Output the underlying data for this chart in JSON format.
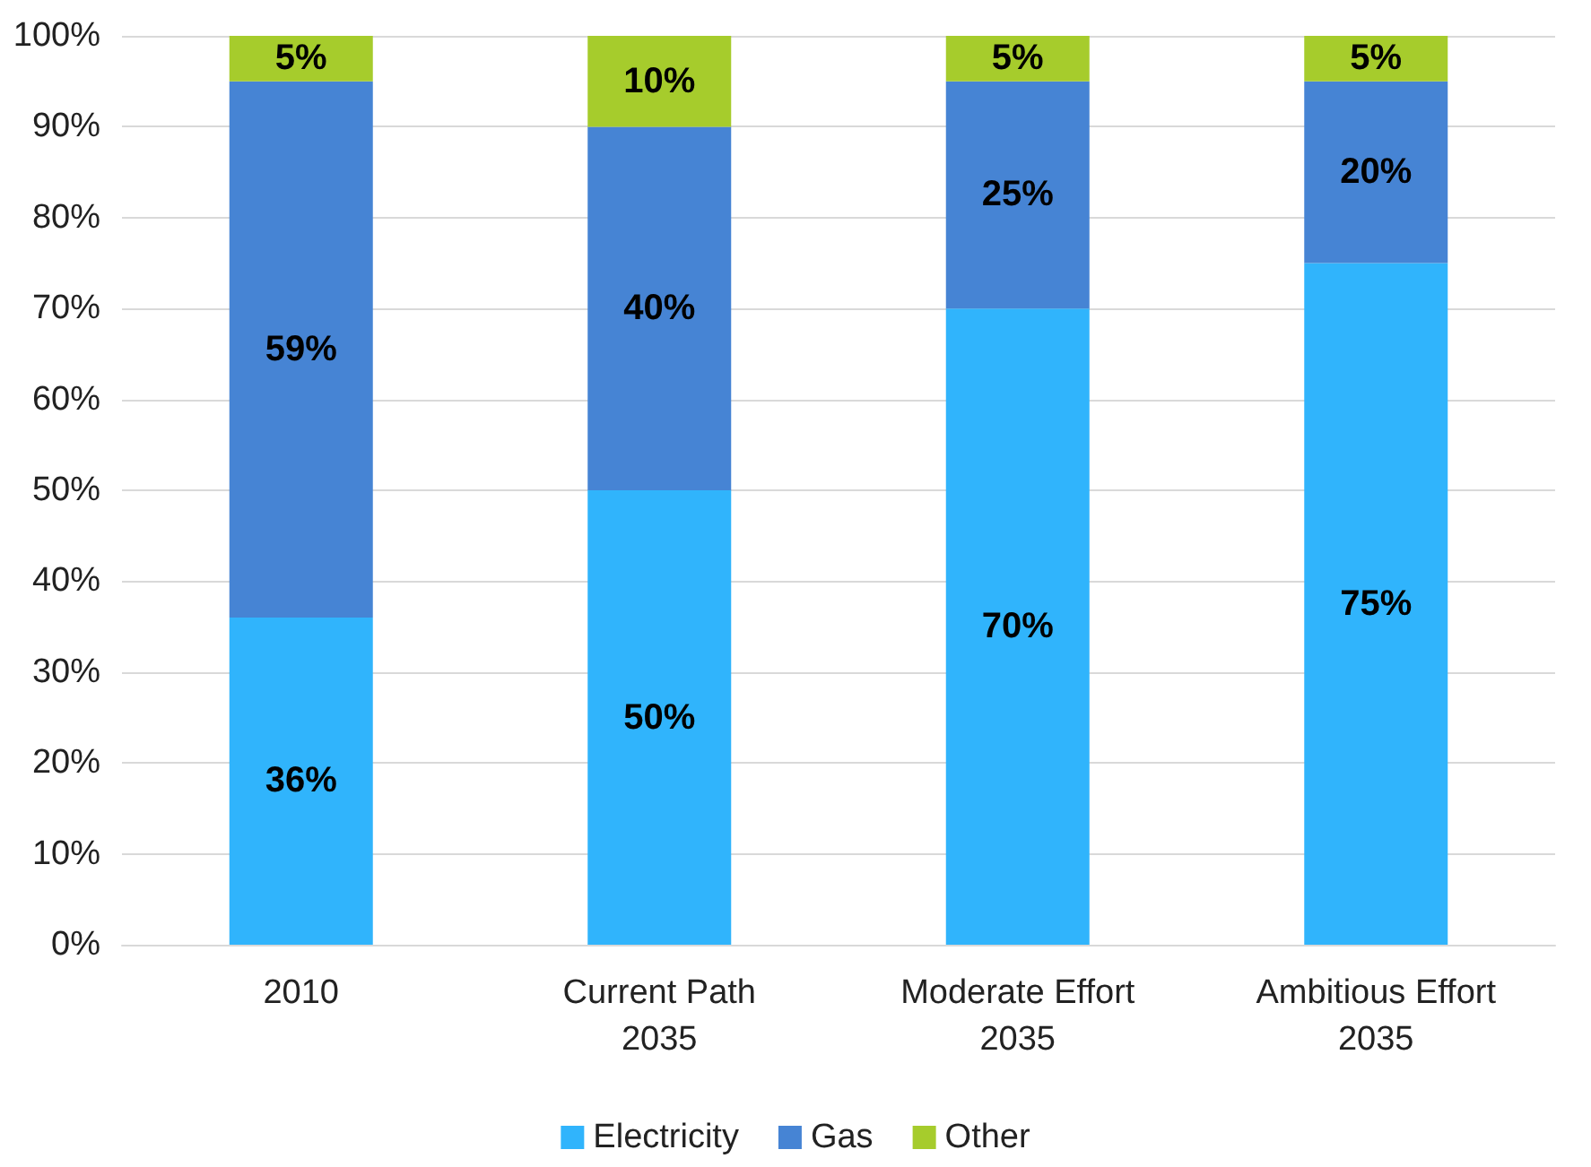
{
  "chart_data": {
    "type": "bar",
    "stacked": true,
    "categories": [
      "2010",
      "Current Path\n2035",
      "Moderate Effort\n2035",
      "Ambitious Effort\n2035"
    ],
    "series": [
      {
        "name": "Electricity",
        "color": "#30b4fc",
        "values": [
          36,
          50,
          70,
          75
        ],
        "value_labels": [
          "36%",
          "50%",
          "70%",
          "75%"
        ]
      },
      {
        "name": "Gas",
        "color": "#4684d4",
        "values": [
          59,
          40,
          25,
          20
        ],
        "value_labels": [
          "59%",
          "40%",
          "25%",
          "20%"
        ]
      },
      {
        "name": "Other",
        "color": "#a6cc2c",
        "values": [
          5,
          10,
          5,
          5
        ],
        "value_labels": [
          "5%",
          "10%",
          "5%",
          "5%"
        ]
      }
    ],
    "ylim": [
      0,
      100
    ],
    "yticks": [
      {
        "value": 0,
        "label": "0%"
      },
      {
        "value": 10,
        "label": "10%"
      },
      {
        "value": 20,
        "label": "20%"
      },
      {
        "value": 30,
        "label": "30%"
      },
      {
        "value": 40,
        "label": "40%"
      },
      {
        "value": 50,
        "label": "50%"
      },
      {
        "value": 60,
        "label": "60%"
      },
      {
        "value": 70,
        "label": "70%"
      },
      {
        "value": 80,
        "label": "80%"
      },
      {
        "value": 90,
        "label": "90%"
      },
      {
        "value": 100,
        "label": "100%"
      }
    ],
    "grid": "y",
    "legend": "bottom"
  }
}
